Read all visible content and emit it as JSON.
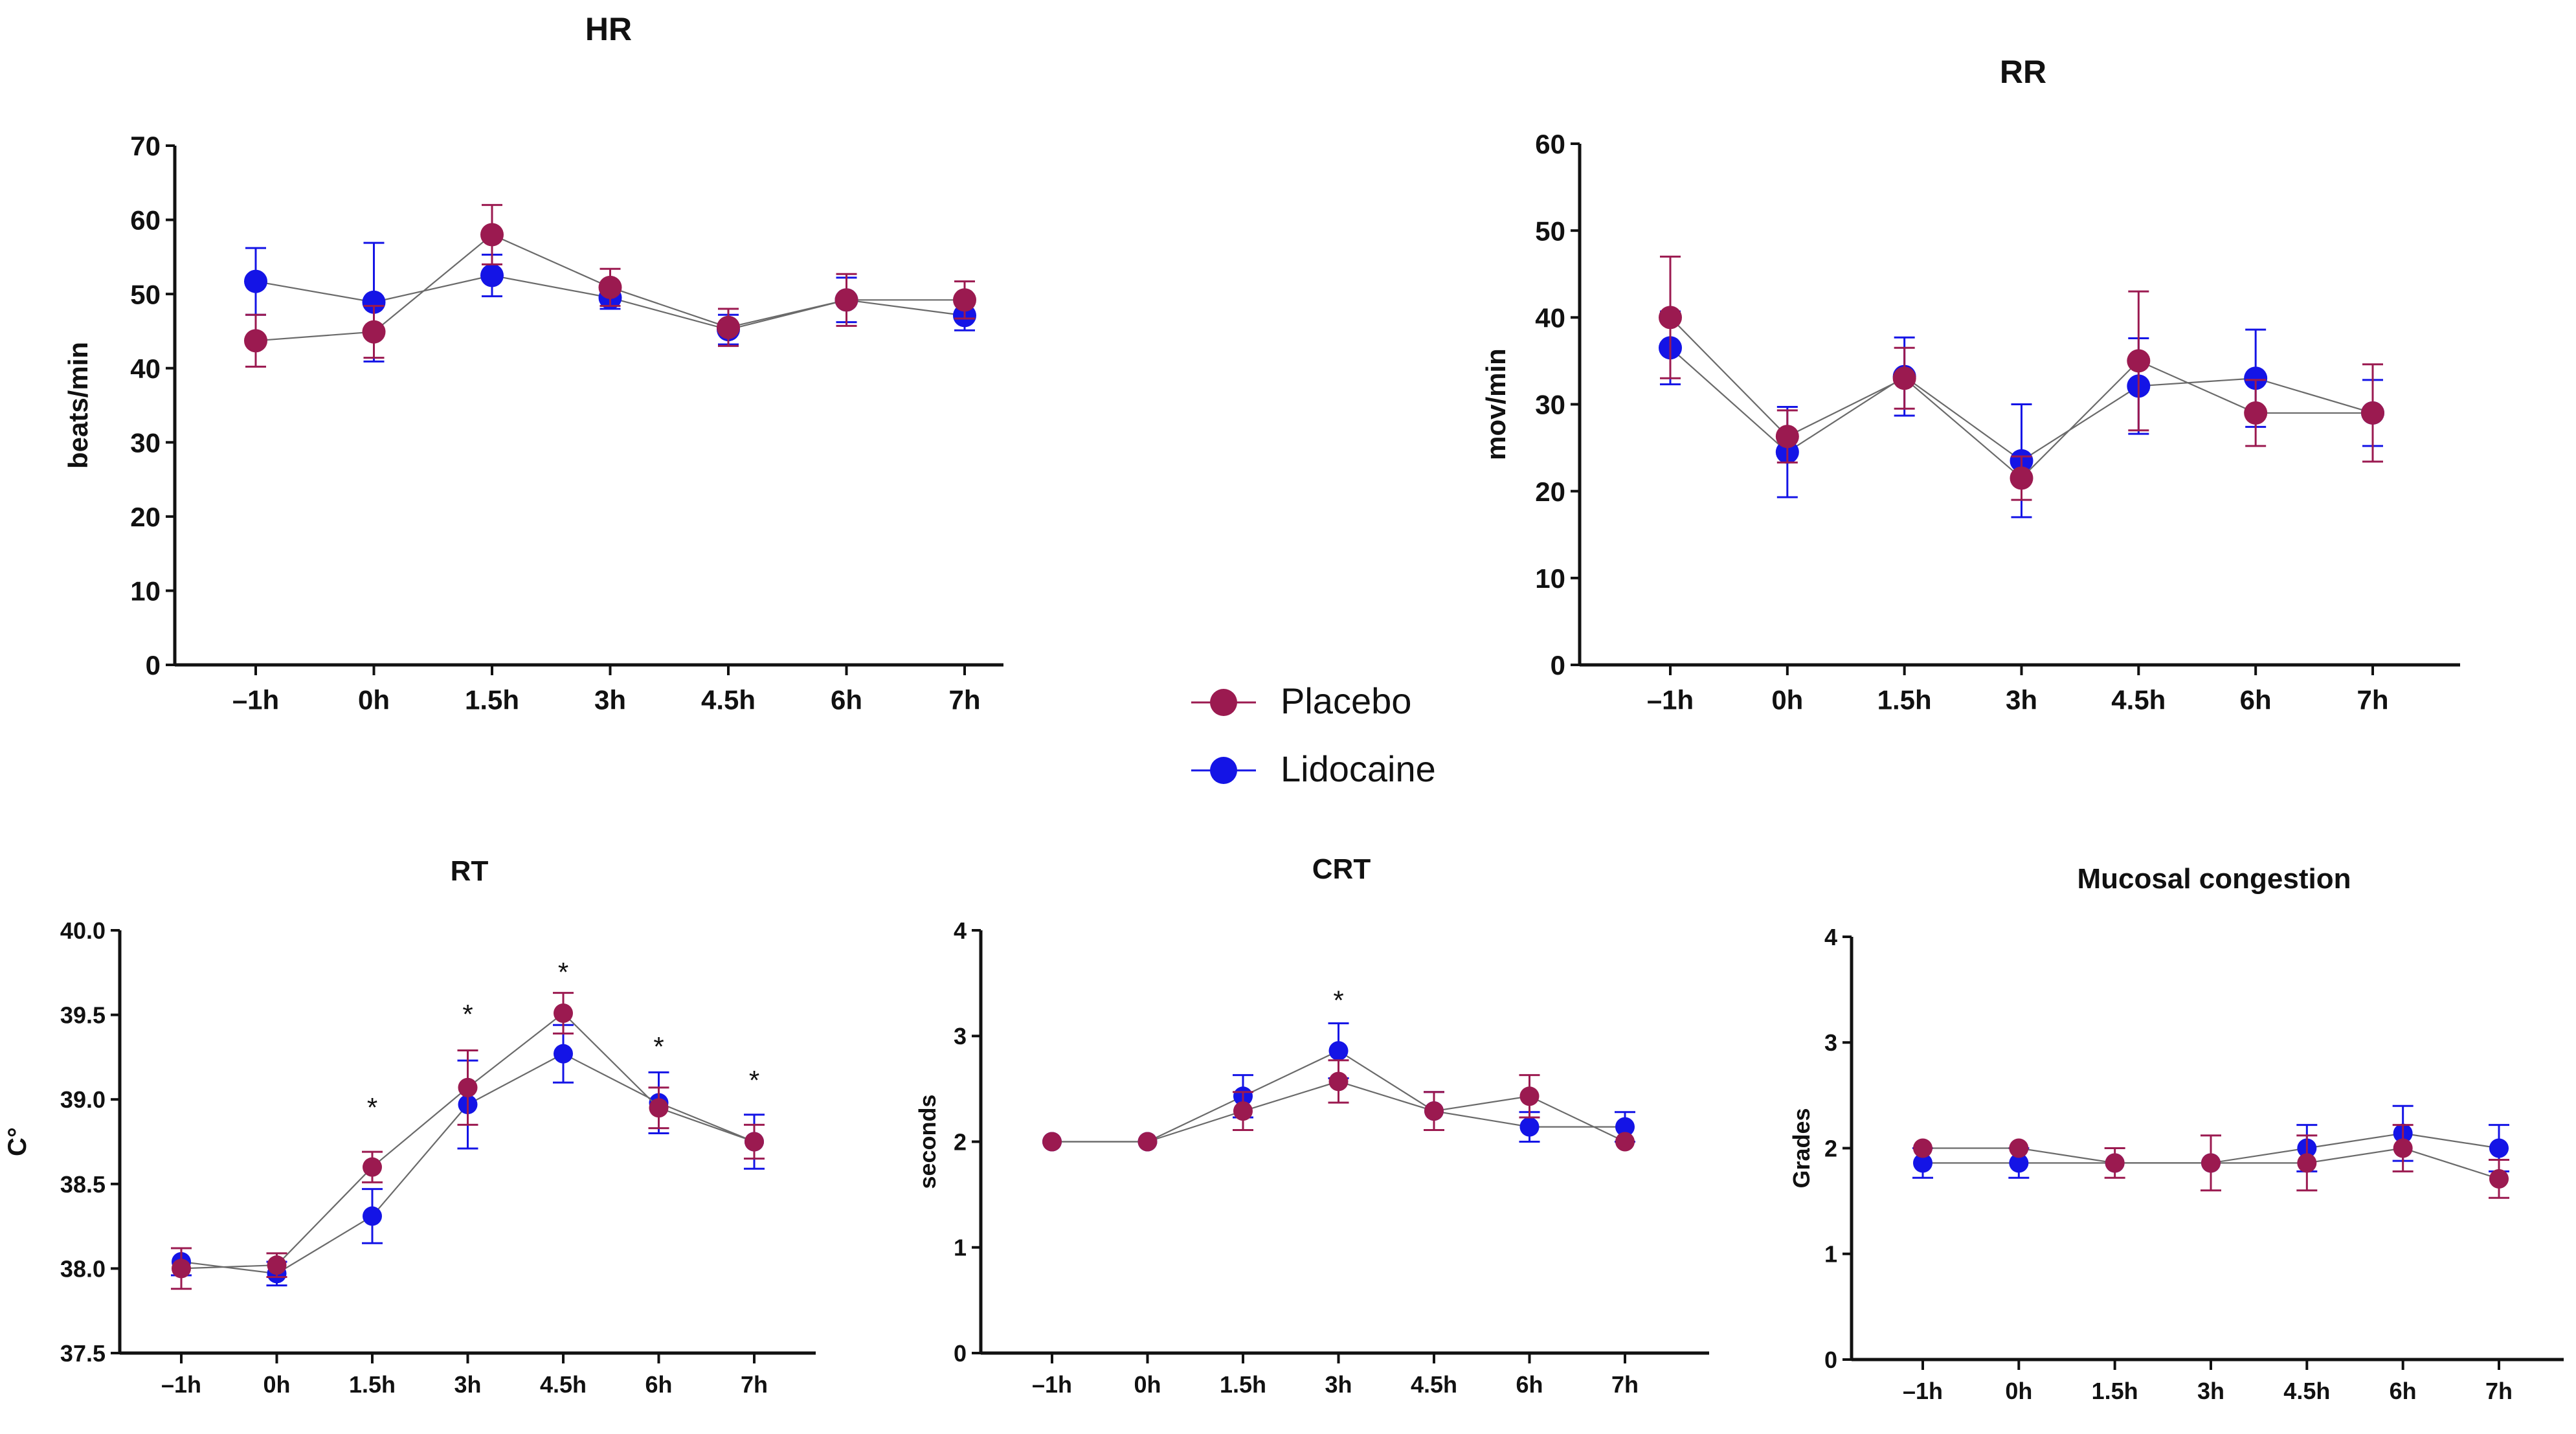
{
  "legend": {
    "entries": [
      {
        "name": "Placebo",
        "color": "#9b1a50"
      },
      {
        "name": "Lidocaine",
        "color": "#1414e6"
      }
    ]
  },
  "chart_data": [
    {
      "id": "hr",
      "type": "line",
      "title": "HR",
      "xlabel": "",
      "ylabel": "beats/min",
      "categories": [
        "–1h",
        "0h",
        "1.5h",
        "3h",
        "4.5h",
        "6h",
        "7h"
      ],
      "ylim": [
        0,
        70
      ],
      "yticks": [
        0,
        10,
        20,
        30,
        40,
        50,
        60,
        70
      ],
      "series": [
        {
          "name": "Placebo",
          "values": [
            43.7,
            44.9,
            58.0,
            50.9,
            45.5,
            49.2,
            49.2
          ],
          "err": [
            3.5,
            3.5,
            4.0,
            2.5,
            2.5,
            3.5,
            2.5
          ]
        },
        {
          "name": "Lidocaine",
          "values": [
            51.7,
            48.9,
            52.5,
            49.5,
            45.2,
            49.2,
            47.1
          ],
          "err": [
            4.5,
            8.0,
            2.8,
            1.5,
            2.0,
            3.0,
            2.0
          ]
        }
      ],
      "annotations": []
    },
    {
      "id": "rr",
      "type": "line",
      "title": "RR",
      "xlabel": "",
      "ylabel": "mov/min",
      "categories": [
        "–1h",
        "0h",
        "1.5h",
        "3h",
        "4.5h",
        "6h",
        "7h"
      ],
      "ylim": [
        0,
        60
      ],
      "yticks": [
        0,
        10,
        20,
        30,
        40,
        50,
        60
      ],
      "series": [
        {
          "name": "Placebo",
          "values": [
            40.0,
            26.3,
            33.0,
            21.5,
            35.0,
            29.0,
            29.0
          ],
          "err": [
            7.0,
            3.0,
            3.5,
            2.5,
            8.0,
            3.8,
            5.6
          ]
        },
        {
          "name": "Lidocaine",
          "values": [
            36.5,
            24.5,
            33.2,
            23.5,
            32.1,
            33.0,
            29.0
          ],
          "err": [
            4.2,
            5.2,
            4.5,
            6.5,
            5.5,
            5.6,
            3.8
          ]
        }
      ],
      "annotations": []
    },
    {
      "id": "rt",
      "type": "line",
      "title": "RT",
      "xlabel": "",
      "ylabel": "C°",
      "categories": [
        "–1h",
        "0h",
        "1.5h",
        "3h",
        "4.5h",
        "6h",
        "7h"
      ],
      "ylim": [
        37.5,
        40.0
      ],
      "yticks": [
        37.5,
        38.0,
        38.5,
        39.0,
        39.5,
        40.0
      ],
      "series": [
        {
          "name": "Placebo",
          "values": [
            38.0,
            38.02,
            38.6,
            39.07,
            39.51,
            38.95,
            38.75
          ],
          "err": [
            0.12,
            0.07,
            0.09,
            0.22,
            0.12,
            0.12,
            0.1
          ]
        },
        {
          "name": "Lidocaine",
          "values": [
            38.04,
            37.97,
            38.31,
            38.97,
            39.27,
            38.98,
            38.75
          ],
          "err": [
            0.08,
            0.07,
            0.16,
            0.26,
            0.17,
            0.18,
            0.16
          ]
        }
      ],
      "annotations": [
        {
          "category": "1.5h",
          "text": "*",
          "y": 38.96
        },
        {
          "category": "3h",
          "text": "*",
          "y": 39.51
        },
        {
          "category": "4.5h",
          "text": "*",
          "y": 39.76
        },
        {
          "category": "6h",
          "text": "*",
          "y": 39.32
        },
        {
          "category": "7h",
          "text": "*",
          "y": 39.12
        }
      ]
    },
    {
      "id": "crt",
      "type": "line",
      "title": "CRT",
      "xlabel": "",
      "ylabel": "seconds",
      "categories": [
        "–1h",
        "0h",
        "1.5h",
        "3h",
        "4.5h",
        "6h",
        "7h"
      ],
      "ylim": [
        0,
        4
      ],
      "yticks": [
        0,
        1,
        2,
        3,
        4
      ],
      "series": [
        {
          "name": "Placebo",
          "values": [
            2.0,
            2.0,
            2.29,
            2.57,
            2.29,
            2.43,
            2.0
          ],
          "err": [
            0,
            0,
            0.18,
            0.2,
            0.18,
            0.2,
            0
          ]
        },
        {
          "name": "Lidocaine",
          "values": [
            2.0,
            2.0,
            2.43,
            2.86,
            2.29,
            2.14,
            2.14
          ],
          "err": [
            0,
            0,
            0.2,
            0.26,
            0.18,
            0.14,
            0.14
          ]
        }
      ],
      "annotations": [
        {
          "category": "3h",
          "text": "*",
          "y": 3.35
        }
      ]
    },
    {
      "id": "mucosal",
      "type": "line",
      "title": "Mucosal congestion",
      "xlabel": "",
      "ylabel": "Grades",
      "categories": [
        "–1h",
        "0h",
        "1.5h",
        "3h",
        "4.5h",
        "6h",
        "7h"
      ],
      "ylim": [
        0,
        4
      ],
      "yticks": [
        0,
        1,
        2,
        3,
        4
      ],
      "series": [
        {
          "name": "Placebo",
          "values": [
            2.0,
            2.0,
            1.86,
            1.86,
            1.86,
            2.0,
            1.71
          ],
          "err": [
            0,
            0,
            0.14,
            0.26,
            0.26,
            0.22,
            0.18
          ]
        },
        {
          "name": "Lidocaine",
          "values": [
            1.86,
            1.86,
            1.86,
            1.86,
            2.0,
            2.14,
            2.0
          ],
          "err": [
            0.14,
            0.14,
            0,
            0,
            0.22,
            0.26,
            0.22
          ]
        }
      ],
      "annotations": []
    }
  ]
}
